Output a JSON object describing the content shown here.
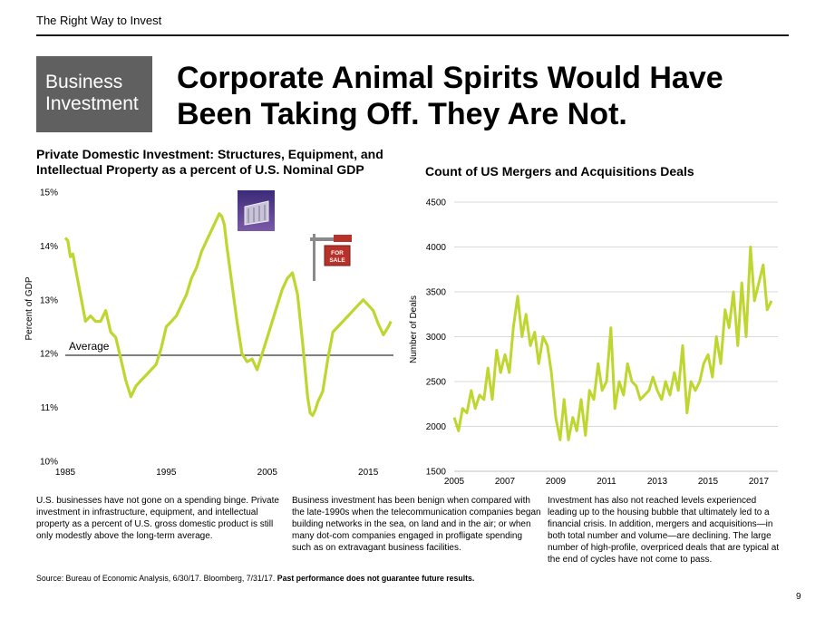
{
  "header": {
    "text": "The Right Way to Invest"
  },
  "badge": {
    "line1": "Business",
    "line2": "Investment"
  },
  "title": {
    "line1": "Corporate Animal Spirits Would Have",
    "line2": "Been Taking Off.  They Are Not."
  },
  "colors": {
    "series": "#c0d630",
    "badge": "#606060",
    "grid": "#d9d9d9"
  },
  "icons": [
    "skyscraper-photo-icon",
    "for-sale-sign-icon"
  ],
  "for_sale_sign": {
    "line1": "FOR",
    "line2": "SALE"
  },
  "chart_data": [
    {
      "type": "line",
      "title": "Private Domestic Investment: Structures, Equipment, and Intellectual Property as a percent of U.S. Nominal GDP",
      "ylabel": "Percent of GDP",
      "xlabel": "",
      "ylim": [
        10,
        15
      ],
      "xlim": [
        1985,
        2017.5
      ],
      "yticks": [
        "10%",
        "11%",
        "12%",
        "13%",
        "14%",
        "15%"
      ],
      "xticks": [
        "1985",
        "1995",
        "2005",
        "2015"
      ],
      "grid": false,
      "average": {
        "label": "Average",
        "value": 11.97
      },
      "x": [
        1985.0,
        1985.25,
        1985.5,
        1985.75,
        1986.0,
        1986.5,
        1987.0,
        1987.5,
        1988.0,
        1988.5,
        1989.0,
        1989.5,
        1990.0,
        1990.5,
        1991.0,
        1991.5,
        1992.0,
        1992.5,
        1993.0,
        1993.5,
        1994.0,
        1994.5,
        1995.0,
        1995.5,
        1996.0,
        1996.5,
        1997.0,
        1997.5,
        1998.0,
        1998.5,
        1999.0,
        1999.5,
        2000.0,
        2000.25,
        2000.5,
        2000.75,
        2001.0,
        2001.5,
        2002.0,
        2002.5,
        2003.0,
        2003.5,
        2004.0,
        2004.5,
        2005.0,
        2005.5,
        2006.0,
        2006.5,
        2007.0,
        2007.5,
        2008.0,
        2008.5,
        2009.0,
        2009.25,
        2009.5,
        2009.75,
        2010.0,
        2010.5,
        2011.0,
        2011.5,
        2012.0,
        2012.5,
        2013.0,
        2013.5,
        2014.0,
        2014.5,
        2015.0,
        2015.5,
        2016.0,
        2016.5,
        2017.0,
        2017.25
      ],
      "series": [
        {
          "values": [
            14.15,
            14.1,
            13.8,
            13.85,
            13.6,
            13.1,
            12.6,
            12.7,
            12.6,
            12.6,
            12.8,
            12.4,
            12.3,
            11.9,
            11.5,
            11.2,
            11.4,
            11.5,
            11.6,
            11.7,
            11.8,
            12.1,
            12.5,
            12.6,
            12.7,
            12.9,
            13.1,
            13.4,
            13.6,
            13.9,
            14.1,
            14.3,
            14.5,
            14.6,
            14.55,
            14.4,
            14.0,
            13.3,
            12.6,
            12.0,
            11.85,
            11.9,
            11.7,
            12.0,
            12.3,
            12.6,
            12.9,
            13.2,
            13.4,
            13.5,
            13.1,
            12.2,
            11.2,
            10.9,
            10.85,
            10.95,
            11.1,
            11.3,
            11.9,
            12.4,
            12.5,
            12.6,
            12.7,
            12.8,
            12.9,
            13.0,
            12.9,
            12.8,
            12.55,
            12.35,
            12.5,
            12.6
          ]
        }
      ]
    },
    {
      "type": "line",
      "title": "Count of US Mergers and Acquisitions Deals",
      "ylabel": "Number of Deals",
      "xlabel": "",
      "ylim": [
        1500,
        4500
      ],
      "xlim": [
        2005,
        2017.75
      ],
      "yticks": [
        "1500",
        "2000",
        "2500",
        "3000",
        "3500",
        "4000",
        "4500"
      ],
      "xticks": [
        "2005",
        "2007",
        "2009",
        "2011",
        "2013",
        "2015",
        "2017"
      ],
      "grid": true,
      "x": [
        2005.0,
        2005.17,
        2005.33,
        2005.5,
        2005.67,
        2005.83,
        2006.0,
        2006.17,
        2006.33,
        2006.5,
        2006.67,
        2006.83,
        2007.0,
        2007.17,
        2007.33,
        2007.5,
        2007.67,
        2007.83,
        2008.0,
        2008.17,
        2008.33,
        2008.5,
        2008.67,
        2008.83,
        2009.0,
        2009.17,
        2009.33,
        2009.5,
        2009.67,
        2009.83,
        2010.0,
        2010.17,
        2010.33,
        2010.5,
        2010.67,
        2010.83,
        2011.0,
        2011.17,
        2011.33,
        2011.5,
        2011.67,
        2011.83,
        2012.0,
        2012.17,
        2012.33,
        2012.5,
        2012.67,
        2012.83,
        2013.0,
        2013.17,
        2013.33,
        2013.5,
        2013.67,
        2013.83,
        2014.0,
        2014.17,
        2014.33,
        2014.5,
        2014.67,
        2014.83,
        2015.0,
        2015.17,
        2015.33,
        2015.5,
        2015.67,
        2015.83,
        2016.0,
        2016.17,
        2016.33,
        2016.5,
        2016.67,
        2016.83,
        2017.0,
        2017.17,
        2017.33,
        2017.5
      ],
      "series": [
        {
          "values": [
            2100,
            1950,
            2200,
            2150,
            2400,
            2200,
            2350,
            2300,
            2650,
            2300,
            2850,
            2600,
            2800,
            2600,
            3100,
            3450,
            3000,
            3250,
            2900,
            3050,
            2700,
            3000,
            2900,
            2600,
            2100,
            1850,
            2300,
            1850,
            2100,
            1950,
            2300,
            1900,
            2400,
            2300,
            2700,
            2400,
            2500,
            3100,
            2200,
            2500,
            2350,
            2700,
            2500,
            2450,
            2300,
            2350,
            2400,
            2550,
            2400,
            2300,
            2500,
            2350,
            2600,
            2400,
            2900,
            2150,
            2500,
            2400,
            2500,
            2700,
            2800,
            2550,
            3000,
            2700,
            3300,
            3100,
            3500,
            2900,
            3600,
            3000,
            4000,
            3400,
            3600,
            3800,
            3300,
            3400
          ]
        }
      ]
    }
  ],
  "paragraphs": {
    "p1": "U.S. businesses have not gone on a spending binge. Private investment in infrastructure, equipment, and intellectual property as a percent of U.S. gross domestic product is still only modestly above the long-term average.",
    "p2": "Business investment has been benign when compared with the late-1990s when the telecommunication companies began building networks in the sea, on land and in the air; or when many dot-com companies engaged in profligate spending such as on extravagant business facilities.",
    "p3": "Investment has also not reached levels experienced leading up to the housing bubble that ultimately led to a financial crisis. In addition, mergers and acquisitions—in both total number and volume—are declining. The large number of high-profile, overpriced deals that are typical at the end of cycles have not come to pass."
  },
  "footer": {
    "source": "Source: Bureau of Economic Analysis, 6/30/17. Bloomberg, 7/31/17. ",
    "disclaimer": "Past performance does not guarantee future results.",
    "page_number": "9"
  }
}
